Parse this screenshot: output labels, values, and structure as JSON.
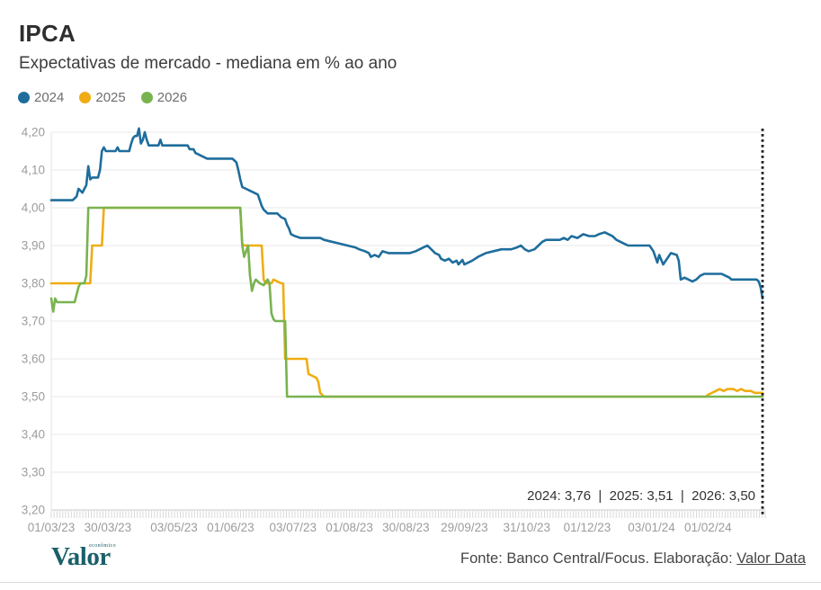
{
  "header": {
    "title": "IPCA",
    "subtitle": "Expectativas de mercado - mediana em % ao ano"
  },
  "legend": [
    {
      "label": "2024",
      "color": "#1e6d9c"
    },
    {
      "label": "2025",
      "color": "#efad13"
    },
    {
      "label": "2026",
      "color": "#79b350"
    }
  ],
  "footer": {
    "logo": "Valor",
    "logo_small": "econômico",
    "source_text": "Fonte: Banco Central/Focus. Elaboração: ",
    "source_link": "Valor Data"
  },
  "colors": {
    "grid": "#e8e8e8",
    "axis_bottom": "#c8c8c8",
    "axis_left": "#e3e3e3",
    "minor_ticks": "#d9d9d9",
    "tick_label": "#9c9c9c",
    "dotted_line": "#1f1f1f",
    "annotation_text": "#333333",
    "logo_teal": "#1a5f6a"
  },
  "chart_data": {
    "type": "line",
    "title": "IPCA",
    "subtitle": "Expectativas de mercado - mediana em % ao ano",
    "xlabel": "",
    "ylabel": "% ao ano",
    "x_unit": "days since 01/03/23",
    "x_range": [
      0,
      365
    ],
    "ylim": [
      3.2,
      4.2
    ],
    "y_step": 0.1,
    "grid": "horizontal",
    "legend_position": "top-left",
    "y_tick_labels": [
      "3,20",
      "3,30",
      "3,40",
      "3,50",
      "3,60",
      "3,70",
      "3,80",
      "3,90",
      "4,00",
      "4,10",
      "4,20"
    ],
    "x_ticks": [
      {
        "day": 0,
        "label": "01/03/23"
      },
      {
        "day": 29,
        "label": "30/03/23"
      },
      {
        "day": 63,
        "label": "03/05/23"
      },
      {
        "day": 92,
        "label": "01/06/23"
      },
      {
        "day": 124,
        "label": "03/07/23"
      },
      {
        "day": 153,
        "label": "01/08/23"
      },
      {
        "day": 182,
        "label": "30/08/23"
      },
      {
        "day": 212,
        "label": "29/09/23"
      },
      {
        "day": 244,
        "label": "31/10/23"
      },
      {
        "day": 275,
        "label": "01/12/23"
      },
      {
        "day": 308,
        "label": "03/01/24"
      },
      {
        "day": 337,
        "label": "01/02/24"
      }
    ],
    "minor_tick_count": 250,
    "end_marker": {
      "type": "dotted-vline",
      "day": 365
    },
    "annotation": "2024: 3,76  |  2025: 3,51  |  2026: 3,50",
    "final_values": {
      "2024": 3.76,
      "2025": 3.51,
      "2026": 3.5
    },
    "draw_order": [
      1,
      2,
      0
    ],
    "series": [
      {
        "name": "2024",
        "color": "#1e6d9c",
        "points": [
          [
            0,
            4.02
          ],
          [
            11,
            4.02
          ],
          [
            12,
            4.025
          ],
          [
            13,
            4.03
          ],
          [
            14,
            4.05
          ],
          [
            15,
            4.045
          ],
          [
            16,
            4.04
          ],
          [
            17,
            4.05
          ],
          [
            18,
            4.06
          ],
          [
            19,
            4.11
          ],
          [
            20,
            4.075
          ],
          [
            21,
            4.08
          ],
          [
            24,
            4.08
          ],
          [
            25,
            4.1
          ],
          [
            26,
            4.15
          ],
          [
            27,
            4.16
          ],
          [
            28,
            4.15
          ],
          [
            33,
            4.15
          ],
          [
            34,
            4.16
          ],
          [
            35,
            4.15
          ],
          [
            40,
            4.15
          ],
          [
            41,
            4.17
          ],
          [
            42,
            4.185
          ],
          [
            43,
            4.19
          ],
          [
            44,
            4.19
          ],
          [
            45,
            4.21
          ],
          [
            46,
            4.17
          ],
          [
            47,
            4.18
          ],
          [
            48,
            4.2
          ],
          [
            49,
            4.18
          ],
          [
            50,
            4.165
          ],
          [
            55,
            4.165
          ],
          [
            56,
            4.18
          ],
          [
            57,
            4.165
          ],
          [
            70,
            4.165
          ],
          [
            71,
            4.155
          ],
          [
            73,
            4.155
          ],
          [
            74,
            4.145
          ],
          [
            76,
            4.14
          ],
          [
            78,
            4.135
          ],
          [
            80,
            4.13
          ],
          [
            93,
            4.13
          ],
          [
            94,
            4.125
          ],
          [
            95,
            4.12
          ],
          [
            96,
            4.1
          ],
          [
            97,
            4.075
          ],
          [
            98,
            4.055
          ],
          [
            100,
            4.05
          ],
          [
            102,
            4.045
          ],
          [
            104,
            4.04
          ],
          [
            106,
            4.035
          ],
          [
            107,
            4.02
          ],
          [
            108,
            4.005
          ],
          [
            109,
            3.995
          ],
          [
            110,
            3.99
          ],
          [
            111,
            3.985
          ],
          [
            116,
            3.985
          ],
          [
            118,
            3.975
          ],
          [
            120,
            3.97
          ],
          [
            121,
            3.955
          ],
          [
            122,
            3.945
          ],
          [
            123,
            3.93
          ],
          [
            125,
            3.925
          ],
          [
            128,
            3.92
          ],
          [
            138,
            3.92
          ],
          [
            140,
            3.915
          ],
          [
            144,
            3.91
          ],
          [
            148,
            3.905
          ],
          [
            152,
            3.9
          ],
          [
            156,
            3.895
          ],
          [
            158,
            3.89
          ],
          [
            161,
            3.885
          ],
          [
            163,
            3.88
          ],
          [
            164,
            3.87
          ],
          [
            166,
            3.875
          ],
          [
            168,
            3.87
          ],
          [
            170,
            3.885
          ],
          [
            173,
            3.88
          ],
          [
            184,
            3.88
          ],
          [
            187,
            3.885
          ],
          [
            189,
            3.89
          ],
          [
            191,
            3.895
          ],
          [
            193,
            3.9
          ],
          [
            195,
            3.89
          ],
          [
            197,
            3.88
          ],
          [
            199,
            3.875
          ],
          [
            200,
            3.865
          ],
          [
            202,
            3.86
          ],
          [
            204,
            3.865
          ],
          [
            206,
            3.855
          ],
          [
            208,
            3.86
          ],
          [
            209,
            3.85
          ],
          [
            211,
            3.862
          ],
          [
            212,
            3.85
          ],
          [
            214,
            3.855
          ],
          [
            216,
            3.86
          ],
          [
            219,
            3.87
          ],
          [
            223,
            3.88
          ],
          [
            227,
            3.885
          ],
          [
            231,
            3.89
          ],
          [
            236,
            3.89
          ],
          [
            239,
            3.895
          ],
          [
            241,
            3.9
          ],
          [
            243,
            3.89
          ],
          [
            245,
            3.885
          ],
          [
            248,
            3.89
          ],
          [
            250,
            3.9
          ],
          [
            252,
            3.91
          ],
          [
            254,
            3.915
          ],
          [
            261,
            3.915
          ],
          [
            263,
            3.92
          ],
          [
            265,
            3.915
          ],
          [
            267,
            3.925
          ],
          [
            270,
            3.92
          ],
          [
            273,
            3.93
          ],
          [
            276,
            3.925
          ],
          [
            279,
            3.925
          ],
          [
            281,
            3.93
          ],
          [
            284,
            3.935
          ],
          [
            286,
            3.93
          ],
          [
            288,
            3.925
          ],
          [
            290,
            3.915
          ],
          [
            292,
            3.91
          ],
          [
            294,
            3.905
          ],
          [
            296,
            3.9
          ],
          [
            307,
            3.9
          ],
          [
            309,
            3.885
          ],
          [
            310,
            3.87
          ],
          [
            311,
            3.855
          ],
          [
            312,
            3.875
          ],
          [
            314,
            3.85
          ],
          [
            316,
            3.865
          ],
          [
            318,
            3.88
          ],
          [
            321,
            3.875
          ],
          [
            322,
            3.86
          ],
          [
            323,
            3.81
          ],
          [
            325,
            3.815
          ],
          [
            327,
            3.81
          ],
          [
            329,
            3.805
          ],
          [
            331,
            3.81
          ],
          [
            333,
            3.82
          ],
          [
            335,
            3.825
          ],
          [
            344,
            3.825
          ],
          [
            346,
            3.82
          ],
          [
            348,
            3.815
          ],
          [
            349,
            3.81
          ],
          [
            362,
            3.81
          ],
          [
            363,
            3.805
          ],
          [
            364,
            3.79
          ],
          [
            365,
            3.76
          ]
        ]
      },
      {
        "name": "2025",
        "color": "#efad13",
        "points": [
          [
            0,
            3.8
          ],
          [
            20,
            3.8
          ],
          [
            21,
            3.9
          ],
          [
            26,
            3.9
          ],
          [
            27,
            4.0
          ],
          [
            97,
            4.0
          ],
          [
            98,
            3.905
          ],
          [
            99,
            3.9
          ],
          [
            108,
            3.9
          ],
          [
            109,
            3.81
          ],
          [
            110,
            3.8
          ],
          [
            113,
            3.8
          ],
          [
            114,
            3.81
          ],
          [
            116,
            3.805
          ],
          [
            118,
            3.8
          ],
          [
            119,
            3.8
          ],
          [
            120,
            3.6
          ],
          [
            131,
            3.6
          ],
          [
            132,
            3.56
          ],
          [
            136,
            3.55
          ],
          [
            137,
            3.54
          ],
          [
            138,
            3.51
          ],
          [
            140,
            3.5
          ],
          [
            336,
            3.5
          ],
          [
            337,
            3.505
          ],
          [
            339,
            3.51
          ],
          [
            341,
            3.515
          ],
          [
            343,
            3.52
          ],
          [
            345,
            3.515
          ],
          [
            347,
            3.52
          ],
          [
            350,
            3.52
          ],
          [
            352,
            3.515
          ],
          [
            354,
            3.52
          ],
          [
            356,
            3.515
          ],
          [
            359,
            3.515
          ],
          [
            361,
            3.51
          ],
          [
            365,
            3.51
          ]
        ]
      },
      {
        "name": "2026",
        "color": "#79b350",
        "points": [
          [
            0,
            3.76
          ],
          [
            1,
            3.725
          ],
          [
            2,
            3.76
          ],
          [
            3,
            3.75
          ],
          [
            12,
            3.75
          ],
          [
            13,
            3.77
          ],
          [
            14,
            3.79
          ],
          [
            15,
            3.8
          ],
          [
            17,
            3.8
          ],
          [
            18,
            3.82
          ],
          [
            19,
            4.0
          ],
          [
            97,
            4.0
          ],
          [
            98,
            3.9
          ],
          [
            99,
            3.87
          ],
          [
            100,
            3.885
          ],
          [
            101,
            3.9
          ],
          [
            102,
            3.82
          ],
          [
            103,
            3.78
          ],
          [
            104,
            3.8
          ],
          [
            105,
            3.81
          ],
          [
            107,
            3.8
          ],
          [
            109,
            3.795
          ],
          [
            111,
            3.81
          ],
          [
            112,
            3.8
          ],
          [
            113,
            3.72
          ],
          [
            114,
            3.705
          ],
          [
            115,
            3.7
          ],
          [
            120,
            3.7
          ],
          [
            121,
            3.5
          ],
          [
            365,
            3.5
          ]
        ]
      }
    ]
  }
}
